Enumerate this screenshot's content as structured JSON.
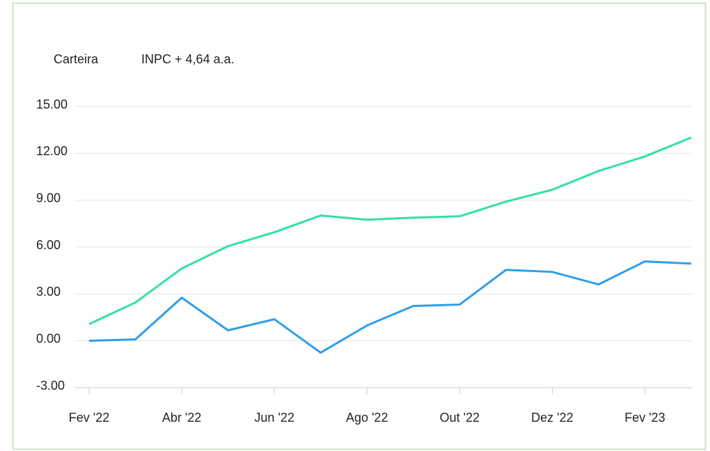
{
  "chart_data": {
    "type": "line",
    "categories": [
      "Fev '22",
      null,
      "Abr '22",
      null,
      "Jun '22",
      null,
      "Ago '22",
      null,
      "Out '22",
      null,
      "Dez '22",
      null,
      "Fev '23",
      null
    ],
    "series": [
      {
        "name": "Carteira",
        "color": "#2f9ee8",
        "values": [
          0.0,
          0.09,
          2.76,
          0.67,
          1.38,
          -0.76,
          0.98,
          2.23,
          2.32,
          4.54,
          4.41,
          3.61,
          5.08,
          4.94
        ]
      },
      {
        "name": "INPC + 4,64 a.a.",
        "color": "#33e0a1",
        "values": [
          1.07,
          2.45,
          4.63,
          6.06,
          6.95,
          8.02,
          7.75,
          7.88,
          7.97,
          8.91,
          9.67,
          10.87,
          11.8,
          13.01
        ]
      }
    ],
    "ylim": [
      -3,
      15
    ],
    "yticks": [
      {
        "value": -3,
        "label": "-3.00"
      },
      {
        "value": 0,
        "label": "0.00"
      },
      {
        "value": 3,
        "label": "3.00"
      },
      {
        "value": 6,
        "label": "6.00"
      },
      {
        "value": 9,
        "label": "9.00"
      },
      {
        "value": 12,
        "label": "12.00"
      },
      {
        "value": 15,
        "label": "15.00"
      }
    ],
    "grid": true
  }
}
